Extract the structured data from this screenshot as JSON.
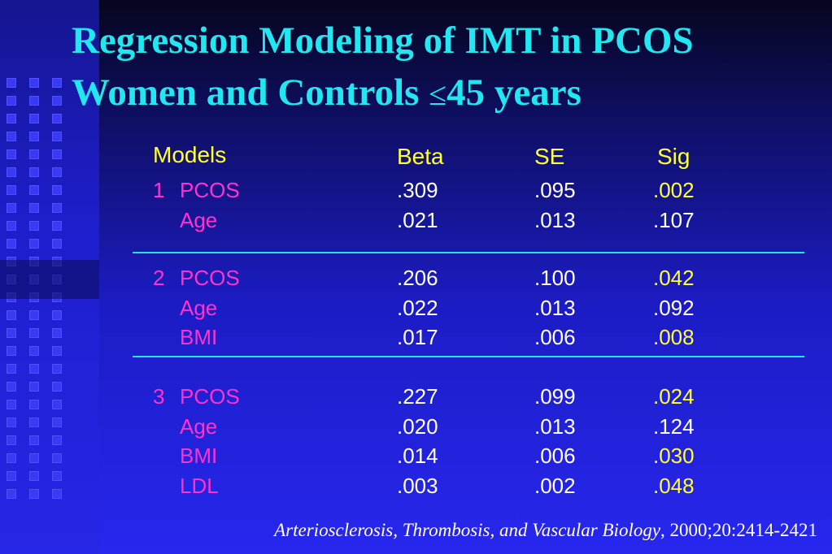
{
  "title": {
    "line1": "Regression Modeling of IMT in PCOS",
    "line2_prefix": "Women and Controls ",
    "line2_symbol": "≤",
    "line2_suffix": "45 years"
  },
  "table": {
    "headers": {
      "models": "Models",
      "beta": "Beta",
      "se": "SE",
      "sig": "Sig"
    },
    "groups": [
      {
        "number": "1",
        "rows": [
          {
            "label": "PCOS",
            "beta": ".309",
            "se": ".095",
            "sig": ".002",
            "highlight": true
          },
          {
            "label": "Age",
            "beta": ".021",
            "se": ".013",
            "sig": ".107",
            "highlight": false
          }
        ]
      },
      {
        "number": "2",
        "rows": [
          {
            "label": "PCOS",
            "beta": ".206",
            "se": ".100",
            "sig": ".042",
            "highlight": true
          },
          {
            "label": "Age",
            "beta": ".022",
            "se": ".013",
            "sig": ".092",
            "highlight": false
          },
          {
            "label": "BMI",
            "beta": ".017",
            "se": ".006",
            "sig": ".008",
            "highlight": true
          }
        ]
      },
      {
        "number": "3",
        "rows": [
          {
            "label": "PCOS",
            "beta": ".227",
            "se": ".099",
            "sig": ".024",
            "highlight": true
          },
          {
            "label": "Age",
            "beta": ".020",
            "se": ".013",
            "sig": ".124",
            "highlight": false
          },
          {
            "label": "BMI",
            "beta": ".014",
            "se": ".006",
            "sig": ".030",
            "highlight": true
          },
          {
            "label": "LDL",
            "beta": ".003",
            "se": ".002",
            "sig": ".048",
            "highlight": true
          }
        ]
      }
    ]
  },
  "citation": {
    "journal": "Arteriosclerosis, Thrombosis, and Vascular Biology",
    "details": ", 2000;20:2414-2421"
  },
  "colors": {
    "title": "#22e6f0",
    "header": "#ffff33",
    "label": "#ff33cc",
    "value": "#ffffff",
    "significant": "#ffff33",
    "divider": "#22e6f0"
  }
}
